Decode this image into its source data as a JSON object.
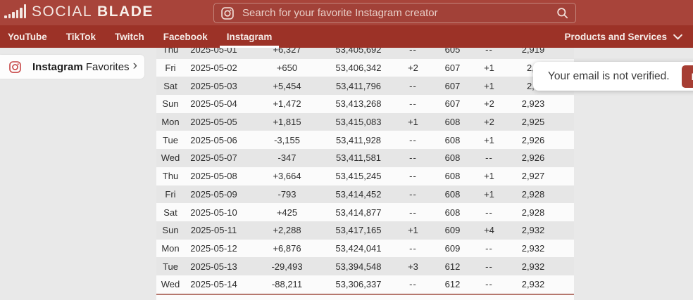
{
  "brand": {
    "logo_part1": "SOCIAL",
    "logo_part2": "BLADE"
  },
  "search": {
    "placeholder": "Search for your favorite Instagram creator"
  },
  "nav": {
    "items": [
      {
        "label": "YouTube",
        "active": false
      },
      {
        "label": "TikTok",
        "active": false
      },
      {
        "label": "Twitch",
        "active": false
      },
      {
        "label": "Facebook",
        "active": false
      },
      {
        "label": "Instagram",
        "active": true
      }
    ],
    "products_label": "Products and Services"
  },
  "sidebar": {
    "favorites_bold": "Instagram",
    "favorites_rest": "Favorites",
    "chevron": "›"
  },
  "notification": {
    "message": "Your email is not verified.",
    "button_label": "Resend"
  },
  "table": {
    "rows": [
      {
        "day": "Thu",
        "date": "2025-05-01",
        "followers_change": "+6,327",
        "followers": "53,405,692",
        "following_change": "--",
        "following": "605",
        "media_change": "--",
        "media": "2,919"
      },
      {
        "day": "Fri",
        "date": "2025-05-02",
        "followers_change": "+650",
        "followers": "53,406,342",
        "following_change": "+2",
        "following": "607",
        "media_change": "+1",
        "media": "2,9"
      },
      {
        "day": "Sat",
        "date": "2025-05-03",
        "followers_change": "+5,454",
        "followers": "53,411,796",
        "following_change": "--",
        "following": "607",
        "media_change": "+1",
        "media": "2,9"
      },
      {
        "day": "Sun",
        "date": "2025-05-04",
        "followers_change": "+1,472",
        "followers": "53,413,268",
        "following_change": "--",
        "following": "607",
        "media_change": "+2",
        "media": "2,923"
      },
      {
        "day": "Mon",
        "date": "2025-05-05",
        "followers_change": "+1,815",
        "followers": "53,415,083",
        "following_change": "+1",
        "following": "608",
        "media_change": "+2",
        "media": "2,925"
      },
      {
        "day": "Tue",
        "date": "2025-05-06",
        "followers_change": "-3,155",
        "followers": "53,411,928",
        "following_change": "--",
        "following": "608",
        "media_change": "+1",
        "media": "2,926"
      },
      {
        "day": "Wed",
        "date": "2025-05-07",
        "followers_change": "-347",
        "followers": "53,411,581",
        "following_change": "--",
        "following": "608",
        "media_change": "--",
        "media": "2,926"
      },
      {
        "day": "Thu",
        "date": "2025-05-08",
        "followers_change": "+3,664",
        "followers": "53,415,245",
        "following_change": "--",
        "following": "608",
        "media_change": "+1",
        "media": "2,927"
      },
      {
        "day": "Fri",
        "date": "2025-05-09",
        "followers_change": "-793",
        "followers": "53,414,452",
        "following_change": "--",
        "following": "608",
        "media_change": "+1",
        "media": "2,928"
      },
      {
        "day": "Sat",
        "date": "2025-05-10",
        "followers_change": "+425",
        "followers": "53,414,877",
        "following_change": "--",
        "following": "608",
        "media_change": "--",
        "media": "2,928"
      },
      {
        "day": "Sun",
        "date": "2025-05-11",
        "followers_change": "+2,288",
        "followers": "53,417,165",
        "following_change": "+1",
        "following": "609",
        "media_change": "+4",
        "media": "2,932"
      },
      {
        "day": "Mon",
        "date": "2025-05-12",
        "followers_change": "+6,876",
        "followers": "53,424,041",
        "following_change": "--",
        "following": "609",
        "media_change": "--",
        "media": "2,932"
      },
      {
        "day": "Tue",
        "date": "2025-05-13",
        "followers_change": "-29,493",
        "followers": "53,394,548",
        "following_change": "+3",
        "following": "612",
        "media_change": "--",
        "media": "2,932"
      },
      {
        "day": "Wed",
        "date": "2025-05-14",
        "followers_change": "-88,211",
        "followers": "53,306,337",
        "following_change": "--",
        "following": "612",
        "media_change": "--",
        "media": "2,932"
      }
    ]
  },
  "colors": {
    "header_red": "#a8443a",
    "nav_red": "#9c3227",
    "button_red": "#a63d33",
    "positive_green": "#3e7d47",
    "negative_red": "#b04b44",
    "stripe_gray": "#e6e6e6",
    "bottom_line": "#b5786e"
  }
}
